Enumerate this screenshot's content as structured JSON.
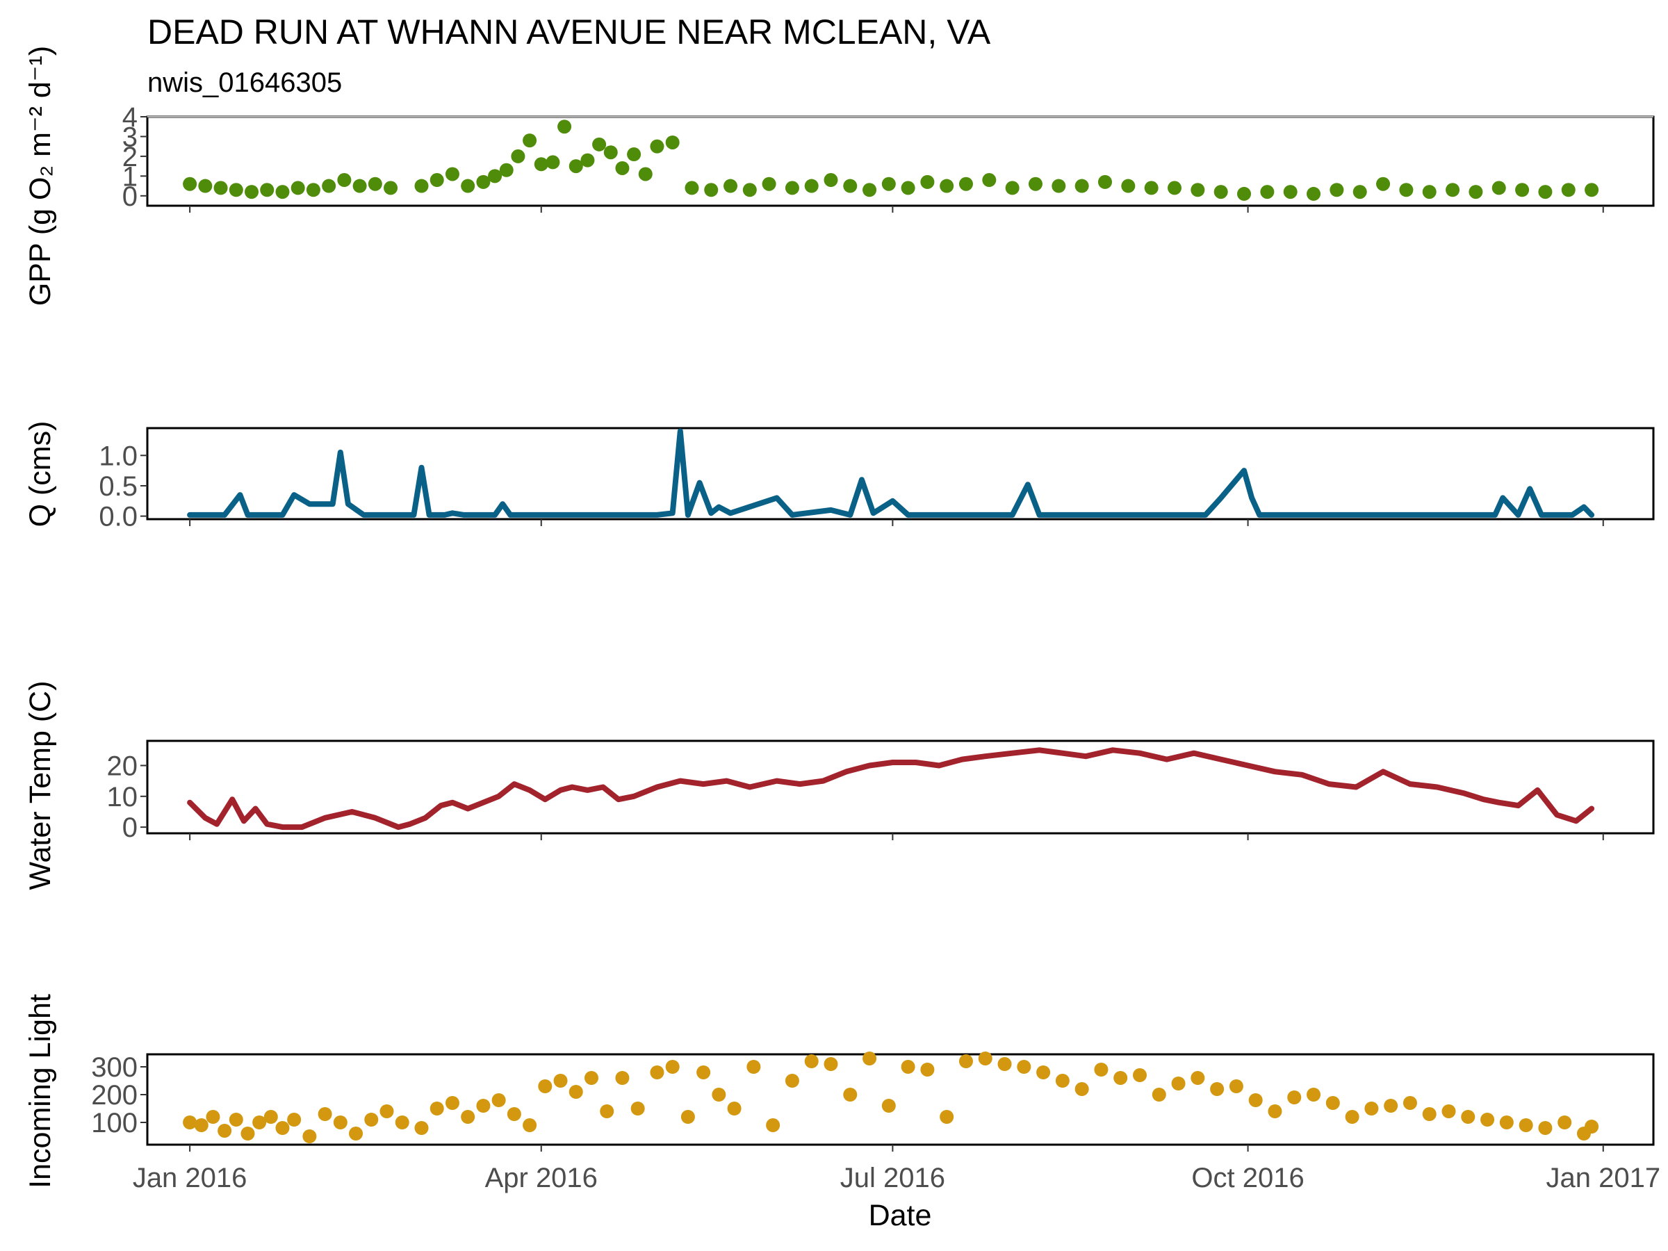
{
  "chart_data": [
    {
      "type": "scatter",
      "title": "DEAD RUN AT WHANN AVENUE NEAR MCLEAN, VA",
      "subtitle": "nwis_01646305",
      "ylabel": "GPP (g  O₂ m⁻² d⁻¹)",
      "xlabel": "",
      "ylim": [
        -0.5,
        4
      ],
      "yticks": [
        "0",
        "1",
        "2",
        "3",
        "4"
      ],
      "color": "#4e8c0a",
      "x_unit": "date",
      "series": [
        {
          "x": [
            "2016-01-01",
            "2016-01-05",
            "2016-01-09",
            "2016-01-13",
            "2016-01-17",
            "2016-01-21",
            "2016-01-25",
            "2016-01-29",
            "2016-02-02",
            "2016-02-06",
            "2016-02-10",
            "2016-02-14",
            "2016-02-18",
            "2016-02-22",
            "2016-03-01",
            "2016-03-05",
            "2016-03-09",
            "2016-03-13",
            "2016-03-17",
            "2016-03-20",
            "2016-03-23",
            "2016-03-26",
            "2016-03-29",
            "2016-04-01",
            "2016-04-04",
            "2016-04-07",
            "2016-04-10",
            "2016-04-13",
            "2016-04-16",
            "2016-04-19",
            "2016-04-22",
            "2016-04-25",
            "2016-04-28",
            "2016-05-01",
            "2016-05-05",
            "2016-05-10",
            "2016-05-15",
            "2016-05-20",
            "2016-05-25",
            "2016-05-30",
            "2016-06-05",
            "2016-06-10",
            "2016-06-15",
            "2016-06-20",
            "2016-06-25",
            "2016-06-30",
            "2016-07-05",
            "2016-07-10",
            "2016-07-15",
            "2016-07-20",
            "2016-07-26",
            "2016-08-01",
            "2016-08-07",
            "2016-08-13",
            "2016-08-19",
            "2016-08-25",
            "2016-08-31",
            "2016-09-06",
            "2016-09-12",
            "2016-09-18",
            "2016-09-24",
            "2016-09-30",
            "2016-10-06",
            "2016-10-12",
            "2016-10-18",
            "2016-10-24",
            "2016-10-30",
            "2016-11-05",
            "2016-11-11",
            "2016-11-17",
            "2016-11-23",
            "2016-11-29",
            "2016-12-05",
            "2016-12-11",
            "2016-12-17",
            "2016-12-23",
            "2016-12-29"
          ],
          "values": [
            0.6,
            0.5,
            0.4,
            0.3,
            0.2,
            0.3,
            0.2,
            0.4,
            0.3,
            0.5,
            0.8,
            0.5,
            0.6,
            0.4,
            0.5,
            0.8,
            1.1,
            0.5,
            0.7,
            1.0,
            1.3,
            2.0,
            2.8,
            1.6,
            1.7,
            3.5,
            1.5,
            1.8,
            2.6,
            2.2,
            1.4,
            2.1,
            1.1,
            2.5,
            2.7,
            0.4,
            0.3,
            0.5,
            0.3,
            0.6,
            0.4,
            0.5,
            0.8,
            0.5,
            0.3,
            0.6,
            0.4,
            0.7,
            0.5,
            0.6,
            0.8,
            0.4,
            0.6,
            0.5,
            0.5,
            0.7,
            0.5,
            0.4,
            0.4,
            0.3,
            0.2,
            0.1,
            0.2,
            0.2,
            0.1,
            0.3,
            0.2,
            0.6,
            0.3,
            0.2,
            0.3,
            0.2,
            0.4,
            0.3,
            0.2,
            0.3,
            0.3
          ]
        }
      ]
    },
    {
      "type": "line",
      "ylabel": "Q (cms)",
      "ylim": [
        -0.05,
        1.45
      ],
      "yticks": [
        "0.0",
        "0.5",
        "1.0"
      ],
      "color": "#0a6187",
      "x_unit": "date",
      "series": [
        {
          "x": [
            "2016-01-01",
            "2016-01-10",
            "2016-01-14",
            "2016-01-16",
            "2016-01-20",
            "2016-01-25",
            "2016-01-28",
            "2016-02-01",
            "2016-02-07",
            "2016-02-09",
            "2016-02-11",
            "2016-02-15",
            "2016-02-28",
            "2016-03-01",
            "2016-03-03",
            "2016-03-07",
            "2016-03-09",
            "2016-03-12",
            "2016-03-20",
            "2016-03-22",
            "2016-03-24",
            "2016-04-01",
            "2016-05-01",
            "2016-05-05",
            "2016-05-07",
            "2016-05-09",
            "2016-05-12",
            "2016-05-15",
            "2016-05-17",
            "2016-05-20",
            "2016-06-01",
            "2016-06-05",
            "2016-06-15",
            "2016-06-20",
            "2016-06-23",
            "2016-06-26",
            "2016-07-01",
            "2016-07-05",
            "2016-07-08",
            "2016-07-12",
            "2016-07-25",
            "2016-08-01",
            "2016-08-05",
            "2016-08-08",
            "2016-08-15",
            "2016-09-20",
            "2016-09-24",
            "2016-09-28",
            "2016-09-30",
            "2016-10-02",
            "2016-10-04",
            "2016-11-20",
            "2016-12-01",
            "2016-12-04",
            "2016-12-06",
            "2016-12-10",
            "2016-12-13",
            "2016-12-16",
            "2016-12-20",
            "2016-12-24",
            "2016-12-27",
            "2016-12-29"
          ],
          "values": [
            0.02,
            0.02,
            0.35,
            0.02,
            0.02,
            0.02,
            0.35,
            0.2,
            0.2,
            1.05,
            0.2,
            0.02,
            0.02,
            0.8,
            0.02,
            0.02,
            0.05,
            0.02,
            0.02,
            0.2,
            0.02,
            0.02,
            0.02,
            0.05,
            1.4,
            0.02,
            0.55,
            0.05,
            0.15,
            0.05,
            0.3,
            0.02,
            0.1,
            0.02,
            0.6,
            0.05,
            0.25,
            0.02,
            0.02,
            0.02,
            0.02,
            0.02,
            0.52,
            0.02,
            0.02,
            0.02,
            0.3,
            0.6,
            0.75,
            0.3,
            0.02,
            0.02,
            0.02,
            0.02,
            0.3,
            0.02,
            0.45,
            0.02,
            0.02,
            0.02,
            0.15,
            0.02
          ]
        }
      ]
    },
    {
      "type": "line",
      "ylabel": "Water Temp (C)",
      "ylim": [
        -2,
        28
      ],
      "yticks": [
        "0",
        "10",
        "20"
      ],
      "color": "#a3232d",
      "x_unit": "date",
      "series": [
        {
          "x": [
            "2016-01-01",
            "2016-01-05",
            "2016-01-08",
            "2016-01-12",
            "2016-01-15",
            "2016-01-18",
            "2016-01-21",
            "2016-01-25",
            "2016-01-30",
            "2016-02-05",
            "2016-02-12",
            "2016-02-18",
            "2016-02-24",
            "2016-02-27",
            "2016-03-02",
            "2016-03-06",
            "2016-03-09",
            "2016-03-13",
            "2016-03-17",
            "2016-03-21",
            "2016-03-25",
            "2016-03-29",
            "2016-04-02",
            "2016-04-06",
            "2016-04-09",
            "2016-04-13",
            "2016-04-17",
            "2016-04-21",
            "2016-04-25",
            "2016-05-01",
            "2016-05-07",
            "2016-05-13",
            "2016-05-19",
            "2016-05-25",
            "2016-06-01",
            "2016-06-07",
            "2016-06-13",
            "2016-06-19",
            "2016-06-25",
            "2016-07-01",
            "2016-07-07",
            "2016-07-13",
            "2016-07-19",
            "2016-07-25",
            "2016-08-01",
            "2016-08-08",
            "2016-08-14",
            "2016-08-20",
            "2016-08-27",
            "2016-09-03",
            "2016-09-10",
            "2016-09-17",
            "2016-09-24",
            "2016-10-01",
            "2016-10-08",
            "2016-10-15",
            "2016-10-22",
            "2016-10-29",
            "2016-11-05",
            "2016-11-12",
            "2016-11-19",
            "2016-11-26",
            "2016-12-01",
            "2016-12-05",
            "2016-12-10",
            "2016-12-15",
            "2016-12-20",
            "2016-12-25",
            "2016-12-29"
          ],
          "values": [
            8,
            3,
            1,
            9,
            2,
            6,
            1,
            0,
            0,
            3,
            5,
            3,
            0,
            1,
            3,
            7,
            8,
            6,
            8,
            10,
            14,
            12,
            9,
            12,
            13,
            12,
            13,
            9,
            10,
            13,
            15,
            14,
            15,
            13,
            15,
            14,
            15,
            18,
            20,
            21,
            21,
            20,
            22,
            23,
            24,
            25,
            24,
            23,
            25,
            24,
            22,
            24,
            22,
            20,
            18,
            17,
            14,
            13,
            18,
            14,
            13,
            11,
            9,
            8,
            7,
            12,
            4,
            2,
            6
          ]
        }
      ]
    },
    {
      "type": "scatter",
      "ylabel": "Incoming Light",
      "xlabel": "Date",
      "ylim": [
        20,
        345
      ],
      "yticks": [
        "100",
        "200",
        "300"
      ],
      "xticks": [
        "Jan 2016",
        "Apr 2016",
        "Jul 2016",
        "Oct 2016",
        "Jan 2017"
      ],
      "xlim": [
        "2015-12-21",
        "2017-01-14"
      ],
      "color": "#d39810",
      "x_unit": "date",
      "series": [
        {
          "x": [
            "2016-01-01",
            "2016-01-04",
            "2016-01-07",
            "2016-01-10",
            "2016-01-13",
            "2016-01-16",
            "2016-01-19",
            "2016-01-22",
            "2016-01-25",
            "2016-01-28",
            "2016-02-01",
            "2016-02-05",
            "2016-02-09",
            "2016-02-13",
            "2016-02-17",
            "2016-02-21",
            "2016-02-25",
            "2016-03-01",
            "2016-03-05",
            "2016-03-09",
            "2016-03-13",
            "2016-03-17",
            "2016-03-21",
            "2016-03-25",
            "2016-03-29",
            "2016-04-02",
            "2016-04-06",
            "2016-04-10",
            "2016-04-14",
            "2016-04-18",
            "2016-04-22",
            "2016-04-26",
            "2016-05-01",
            "2016-05-05",
            "2016-05-09",
            "2016-05-13",
            "2016-05-17",
            "2016-05-21",
            "2016-05-26",
            "2016-05-31",
            "2016-06-05",
            "2016-06-10",
            "2016-06-15",
            "2016-06-20",
            "2016-06-25",
            "2016-06-30",
            "2016-07-05",
            "2016-07-10",
            "2016-07-15",
            "2016-07-20",
            "2016-07-25",
            "2016-07-30",
            "2016-08-04",
            "2016-08-09",
            "2016-08-14",
            "2016-08-19",
            "2016-08-24",
            "2016-08-29",
            "2016-09-03",
            "2016-09-08",
            "2016-09-13",
            "2016-09-18",
            "2016-09-23",
            "2016-09-28",
            "2016-10-03",
            "2016-10-08",
            "2016-10-13",
            "2016-10-18",
            "2016-10-23",
            "2016-10-28",
            "2016-11-02",
            "2016-11-07",
            "2016-11-12",
            "2016-11-17",
            "2016-11-22",
            "2016-11-27",
            "2016-12-02",
            "2016-12-07",
            "2016-12-12",
            "2016-12-17",
            "2016-12-22",
            "2016-12-27",
            "2016-12-29"
          ],
          "values": [
            100,
            90,
            120,
            70,
            110,
            60,
            100,
            120,
            80,
            110,
            50,
            130,
            100,
            60,
            110,
            140,
            100,
            80,
            150,
            170,
            120,
            160,
            180,
            130,
            90,
            230,
            250,
            210,
            260,
            140,
            260,
            150,
            280,
            300,
            120,
            280,
            200,
            150,
            300,
            90,
            250,
            320,
            310,
            200,
            330,
            160,
            300,
            290,
            120,
            320,
            330,
            310,
            300,
            280,
            250,
            220,
            290,
            260,
            270,
            200,
            240,
            260,
            220,
            230,
            180,
            140,
            190,
            200,
            170,
            120,
            150,
            160,
            170,
            130,
            140,
            120,
            110,
            100,
            90,
            80,
            100,
            60,
            85
          ]
        }
      ]
    }
  ]
}
